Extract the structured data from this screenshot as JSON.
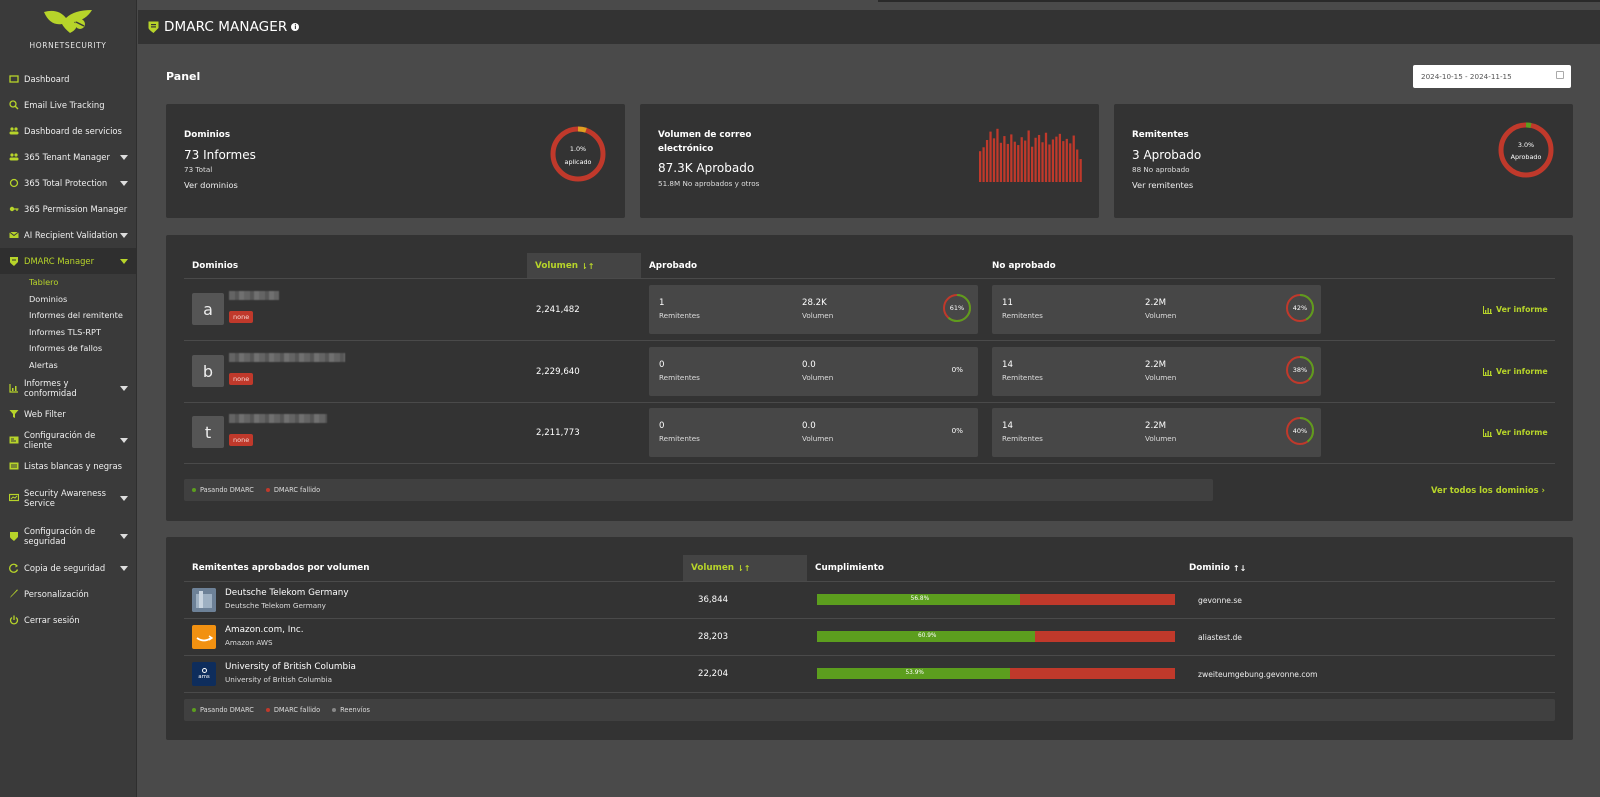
{
  "brand": {
    "name": "HORNETSECURITY",
    "accent": "#b7d42a"
  },
  "sidebar": {
    "items": [
      {
        "label": "Dashboard",
        "icon": "dashboard-icon"
      },
      {
        "label": "Email Live Tracking",
        "icon": "search-icon"
      },
      {
        "label": "Dashboard de servicios",
        "icon": "users-icon"
      },
      {
        "label": "365 Tenant Manager",
        "icon": "users-icon"
      },
      {
        "label": "365 Total Protection",
        "icon": "circle-icon"
      },
      {
        "label": "365 Permission Manager",
        "icon": "key-icon"
      },
      {
        "label": "AI Recipient Validation",
        "icon": "mail-icon"
      },
      {
        "label": "DMARC Manager",
        "icon": "shield-icon"
      },
      {
        "label": "Informes y conformidad",
        "icon": "chart-icon"
      },
      {
        "label": "Web Filter",
        "icon": "filter-icon"
      },
      {
        "label": "Configuración de cliente",
        "icon": "settings-card-icon"
      },
      {
        "label": "Listas blancas y negras",
        "icon": "list-icon"
      },
      {
        "label": "Security Awareness Service",
        "icon": "training-icon"
      },
      {
        "label": "Configuración de seguridad",
        "icon": "shield-icon"
      },
      {
        "label": "Copia de seguridad",
        "icon": "backup-icon"
      },
      {
        "label": "Personalización",
        "icon": "brush-icon"
      },
      {
        "label": "Cerrar sesión",
        "icon": "power-icon"
      }
    ],
    "dmarc_sub": [
      "Tablero",
      "Dominios",
      "Informes del remitente",
      "Informes TLS-RPT",
      "Informes de fallos",
      "Alertas"
    ]
  },
  "header": {
    "title": "DMARC MANAGER",
    "info": "i"
  },
  "page": {
    "title": "Panel",
    "date_range": "2024-10-15 - 2024-11-15"
  },
  "cards": {
    "domains": {
      "title": "Dominios",
      "big": "73 Informes",
      "small": "73 Total",
      "link": "Ver dominios",
      "ring_pct": "1.0%",
      "ring_label": "aplicado",
      "ring_value": 0.01
    },
    "volume": {
      "title1": "Volumen de correo",
      "title2": "electrónico",
      "big": "87.3K Aprobado",
      "small": "51.8M No aprobados y otros",
      "bars": [
        0.55,
        0.62,
        0.75,
        0.9,
        0.78,
        0.95,
        0.7,
        0.82,
        0.68,
        0.85,
        0.72,
        0.66,
        0.8,
        0.74,
        0.92,
        0.63,
        0.79,
        0.84,
        0.71,
        0.88,
        0.67,
        0.76,
        0.81,
        0.86,
        0.73,
        0.77,
        0.69,
        0.83,
        0.58,
        0.41
      ]
    },
    "senders": {
      "title": "Remitentes",
      "big": "3 Aprobado",
      "small": "88 No aprobado",
      "link": "Ver remitentes",
      "ring_pct": "3.0%",
      "ring_label": "Aprobado",
      "ring_value": 0.03
    }
  },
  "domains_table": {
    "headers": {
      "domain": "Dominios",
      "volume": "Volumen",
      "approved": "Aprobado",
      "not_approved": "No aprobado"
    },
    "rows": [
      {
        "letter": "a",
        "policy": "none",
        "volume": "2,241,482",
        "ap_senders": "1",
        "ap_volume": "28.2K",
        "ap_pct": "61%",
        "ap_value": 0.61,
        "na_senders": "11",
        "na_volume": "2.2M",
        "na_pct": "42%",
        "na_value": 0.42
      },
      {
        "letter": "b",
        "policy": "none",
        "volume": "2,229,640",
        "ap_senders": "0",
        "ap_volume": "0.0",
        "ap_pct": "0%",
        "ap_value": 0,
        "na_senders": "14",
        "na_volume": "2.2M",
        "na_pct": "38%",
        "na_value": 0.38
      },
      {
        "letter": "t",
        "policy": "none",
        "volume": "2,211,773",
        "ap_senders": "0",
        "ap_volume": "0.0",
        "ap_pct": "0%",
        "ap_value": 0,
        "na_senders": "14",
        "na_volume": "2.2M",
        "na_pct": "40%",
        "na_value": 0.4
      }
    ],
    "labels": {
      "senders": "Remitentes",
      "volume": "Volumen",
      "report": "Ver informe"
    },
    "legend": {
      "pass": "Pasando DMARC",
      "fail": "DMARC fallido"
    },
    "all_link": "Ver todos los dominios"
  },
  "senders_table": {
    "headers": {
      "sender": "Remitentes aprobados por volumen",
      "volume": "Volumen",
      "compliance": "Cumplimiento",
      "domain": "Dominio"
    },
    "rows": [
      {
        "name": "Deutsche Telekom Germany",
        "sub": "Deutsche Telekom Germany",
        "volume": "36,844",
        "pct": "56.8%",
        "value": 0.568,
        "domain": "gevonne.se"
      },
      {
        "name": "Amazon.com, Inc.",
        "sub": "Amazon AWS",
        "volume": "28,203",
        "pct": "60.9%",
        "value": 0.609,
        "domain": "aliastest.de"
      },
      {
        "name": "University of British Columbia",
        "sub": "University of British Columbia",
        "volume": "22,204",
        "pct": "53.9%",
        "value": 0.539,
        "domain": "zweiteumgebung.gevonne.com"
      }
    ],
    "legend": {
      "pass": "Pasando DMARC",
      "fail": "DMARC fallido",
      "forward": "Reenvíos"
    },
    "ubc_logo_text": "ams"
  },
  "colors": {
    "pass": "#5c9e1e",
    "fail": "#c0392b",
    "forward": "#888888"
  }
}
